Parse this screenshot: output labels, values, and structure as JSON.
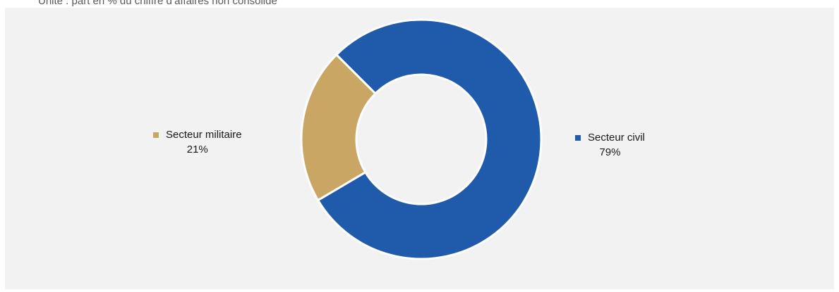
{
  "subtitle": "Unité : part en % du chiffre d’affaires non consolidé",
  "chart_data": {
    "type": "pie",
    "style": "donut",
    "slices": [
      {
        "label": "Secteur civil",
        "value": 79,
        "value_label": "79%",
        "color": "#1f5aab"
      },
      {
        "label": "Secteur militaire",
        "value": 21,
        "value_label": "21%",
        "color": "#c9a663"
      }
    ],
    "legend": "none",
    "data_labels": "outside"
  }
}
